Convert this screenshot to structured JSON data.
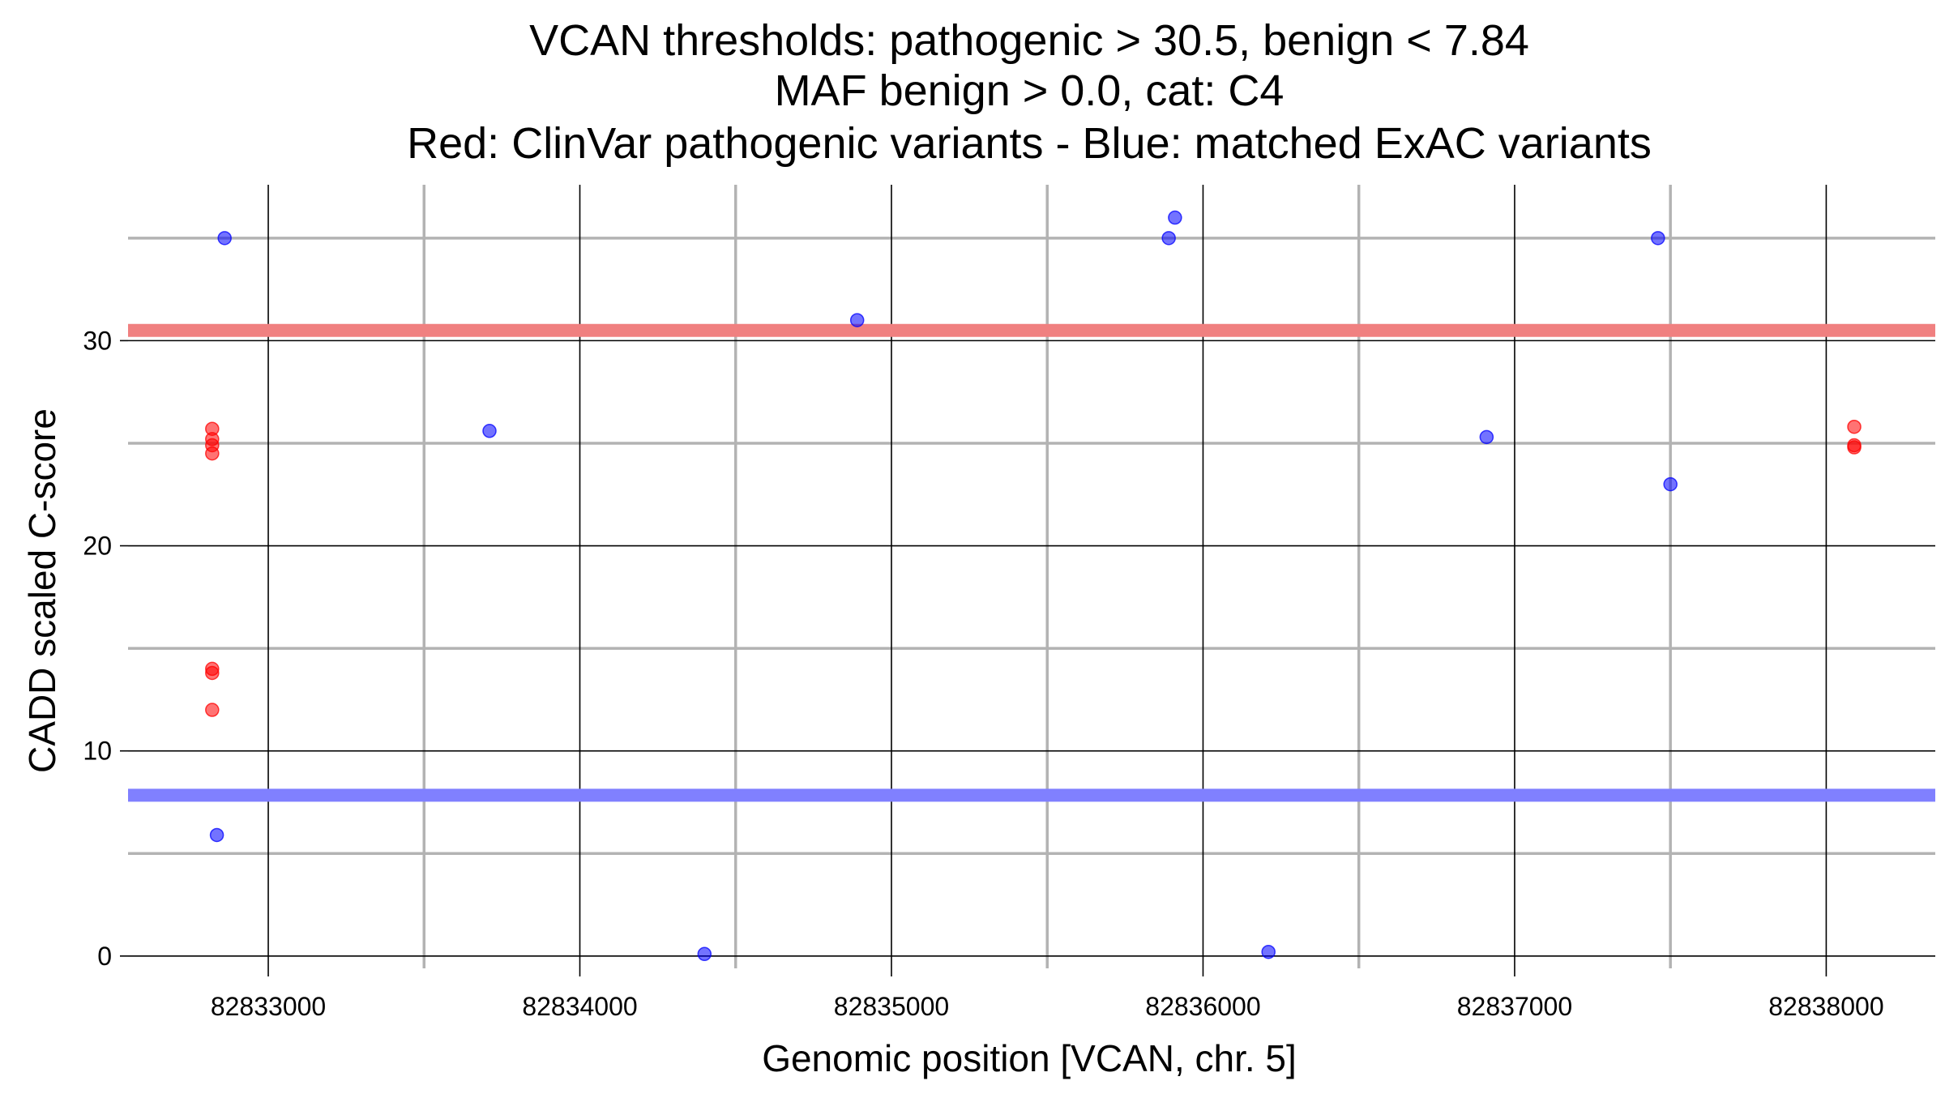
{
  "chart_data": {
    "type": "scatter",
    "title": [
      "VCAN thresholds: pathogenic > 30.5, benign < 7.84",
      "MAF benign > 0.0, cat: C4",
      "Red: ClinVar pathogenic variants - Blue: matched ExAC variants"
    ],
    "xlabel": "Genomic position [VCAN, chr. 5]",
    "ylabel": "CADD scaled C-score",
    "xlim": [
      82832550,
      82838350
    ],
    "ylim": [
      -0.6,
      37.6
    ],
    "x_major_ticks": [
      82833000,
      82834000,
      82835000,
      82836000,
      82837000,
      82838000
    ],
    "x_minor_grid": [
      82833500,
      82834500,
      82835500,
      82836500,
      82837500
    ],
    "y_major_ticks": [
      0,
      10,
      20,
      30
    ],
    "y_minor_grid": [
      5,
      15,
      25,
      35
    ],
    "grid": true,
    "legend": "none",
    "colors": {
      "pathogenic": "#ff0000",
      "benign": "#0000ff",
      "pathogenic_threshold": "#f08080",
      "benign_threshold": "#8080ff",
      "major_grid": "#000000",
      "minor_grid": "#b3b3b3"
    },
    "thresholds": [
      {
        "name": "pathogenic threshold",
        "value": 30.5,
        "series": "ClinVar pathogenic"
      },
      {
        "name": "benign threshold",
        "value": 7.84,
        "series": "matched ExAC"
      }
    ],
    "series": [
      {
        "name": "ClinVar pathogenic",
        "color": "#ff0000",
        "points": [
          {
            "x": 82832820,
            "y": 25.7
          },
          {
            "x": 82832820,
            "y": 25.2
          },
          {
            "x": 82832820,
            "y": 24.9
          },
          {
            "x": 82832820,
            "y": 24.5
          },
          {
            "x": 82832820,
            "y": 14.0
          },
          {
            "x": 82832820,
            "y": 13.8
          },
          {
            "x": 82832820,
            "y": 12.0
          },
          {
            "x": 82838090,
            "y": 25.8
          },
          {
            "x": 82838090,
            "y": 24.9
          },
          {
            "x": 82838090,
            "y": 24.8
          }
        ]
      },
      {
        "name": "matched ExAC",
        "color": "#0000ff",
        "points": [
          {
            "x": 82832860,
            "y": 35.0
          },
          {
            "x": 82832835,
            "y": 5.9
          },
          {
            "x": 82833710,
            "y": 25.6
          },
          {
            "x": 82834400,
            "y": 0.1
          },
          {
            "x": 82834890,
            "y": 31.0
          },
          {
            "x": 82835890,
            "y": 35.0
          },
          {
            "x": 82835910,
            "y": 36.0
          },
          {
            "x": 82836210,
            "y": 0.2
          },
          {
            "x": 82836910,
            "y": 25.3
          },
          {
            "x": 82837460,
            "y": 35.0
          },
          {
            "x": 82837500,
            "y": 23.0
          }
        ]
      }
    ]
  }
}
